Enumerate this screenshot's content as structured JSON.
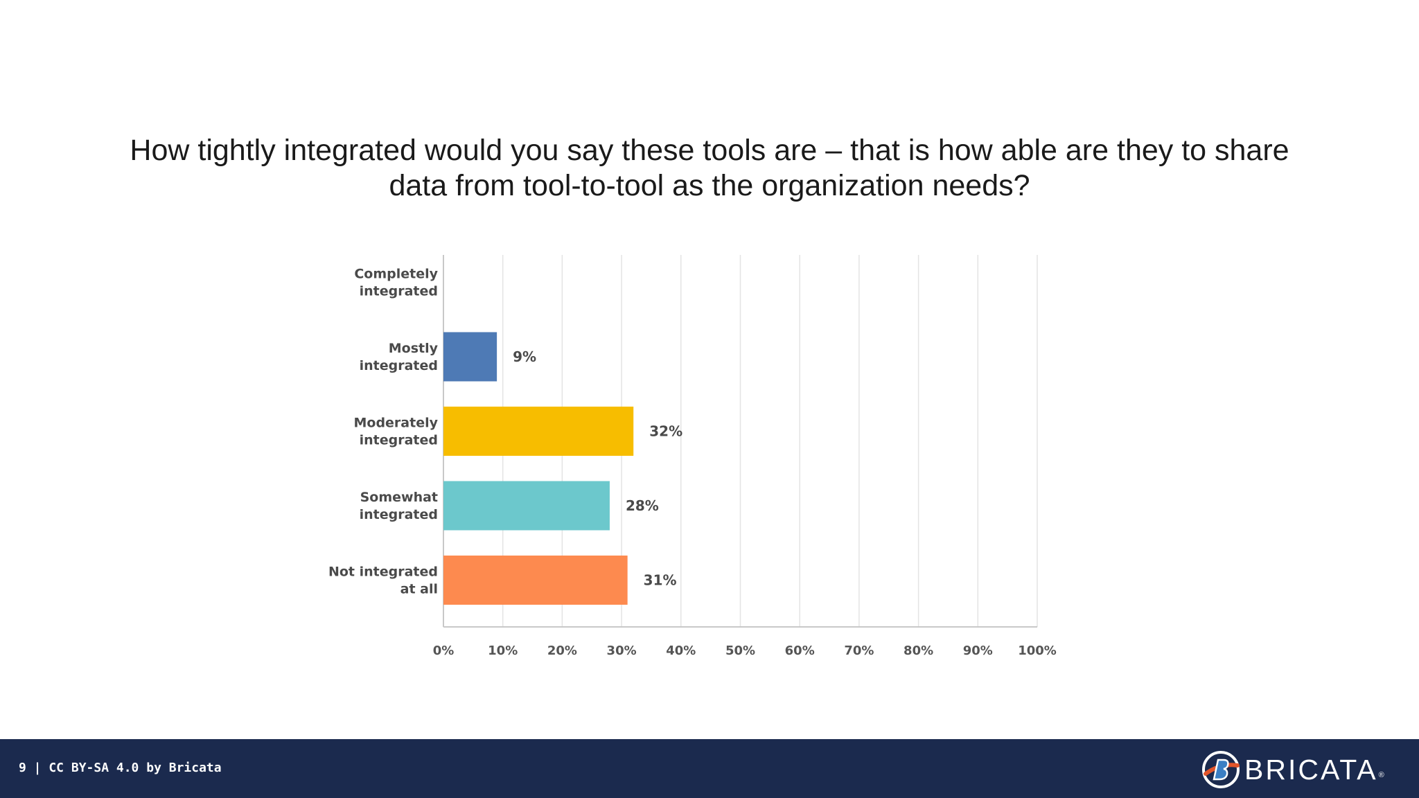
{
  "slide": {
    "title_line1": "How tightly integrated would you say these tools are – that is how able are they to share",
    "title_line2": "data from tool-to-tool as the organization needs?"
  },
  "chart_data": {
    "type": "bar",
    "orientation": "horizontal",
    "title": "How tightly integrated would you say these tools are – that is how able are they to share data from tool-to-tool as the organization needs?",
    "categories": [
      [
        "Completely",
        "integrated"
      ],
      [
        "Mostly",
        "integrated"
      ],
      [
        "Moderately",
        "integrated"
      ],
      [
        "Somewhat",
        "integrated"
      ],
      [
        "Not integrated",
        "at all"
      ]
    ],
    "values": [
      0,
      9,
      32,
      28,
      31
    ],
    "value_labels": [
      "",
      "9%",
      "32%",
      "28%",
      "31%"
    ],
    "colors": [
      "#4e7ab5",
      "#4e7ab5",
      "#f7bd00",
      "#6cc8cc",
      "#fd8a4f"
    ],
    "xlim": [
      0,
      100
    ],
    "ticks": [
      0,
      10,
      20,
      30,
      40,
      50,
      60,
      70,
      80,
      90,
      100
    ],
    "tick_labels": [
      "0%",
      "10%",
      "20%",
      "30%",
      "40%",
      "50%",
      "60%",
      "70%",
      "80%",
      "90%",
      "100%"
    ],
    "grid": true
  },
  "footer": {
    "text": "9 | CC BY-SA 4.0 by Bricata",
    "logo_text": "BRICATA",
    "logo_reg": "®",
    "background": "#1b2a4e"
  }
}
